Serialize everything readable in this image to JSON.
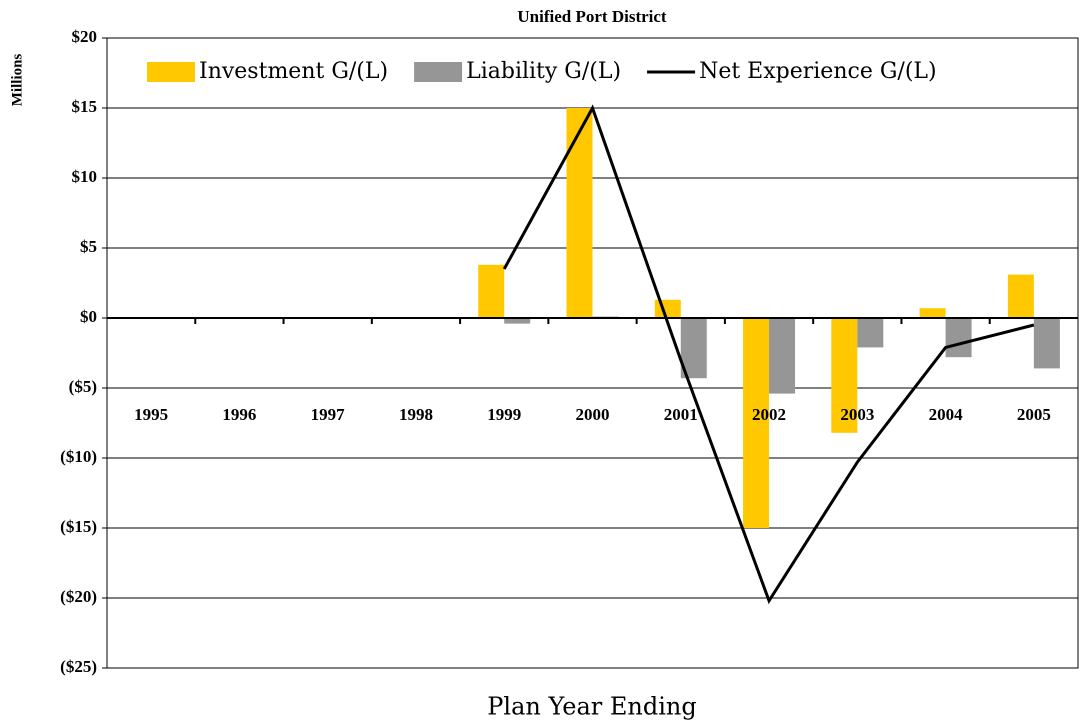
{
  "chart_data": {
    "type": "bar",
    "title": "Unified Port District",
    "y_label": "Millions",
    "x_label": "Plan Year Ending",
    "categories": [
      "1995",
      "1996",
      "1997",
      "1998",
      "1999",
      "2000",
      "2001",
      "2002",
      "2003",
      "2004",
      "2005"
    ],
    "series": [
      {
        "name": "Investment G/(L)",
        "type": "bar",
        "color": "#ffc800",
        "values": [
          null,
          null,
          null,
          null,
          3.8,
          15,
          1.3,
          -15,
          -8.2,
          0.7,
          3.1
        ]
      },
      {
        "name": "Liability G/(L)",
        "type": "bar",
        "color": "#969696",
        "values": [
          null,
          null,
          null,
          null,
          -0.4,
          0.1,
          -4.3,
          -5.4,
          -2.1,
          -2.8,
          -3.6
        ]
      },
      {
        "name": "Net Experience G/(L)",
        "type": "line",
        "color": "#000000",
        "values": [
          null,
          null,
          null,
          null,
          3.5,
          15,
          -3.0,
          -20.2,
          -10.3,
          -2.1,
          -0.5
        ]
      }
    ],
    "ylim": [
      -25,
      20
    ],
    "yticks": [
      {
        "value": -25,
        "label": "($25)"
      },
      {
        "value": -20,
        "label": "($20)"
      },
      {
        "value": -15,
        "label": "($15)"
      },
      {
        "value": -10,
        "label": "($10)"
      },
      {
        "value": -5,
        "label": "($5)"
      },
      {
        "value": 0,
        "label": "$0"
      },
      {
        "value": 5,
        "label": "$5"
      },
      {
        "value": 10,
        "label": "$10"
      },
      {
        "value": 15,
        "label": "$15"
      },
      {
        "value": 20,
        "label": "$20"
      }
    ],
    "grid": true,
    "legend": "top"
  }
}
